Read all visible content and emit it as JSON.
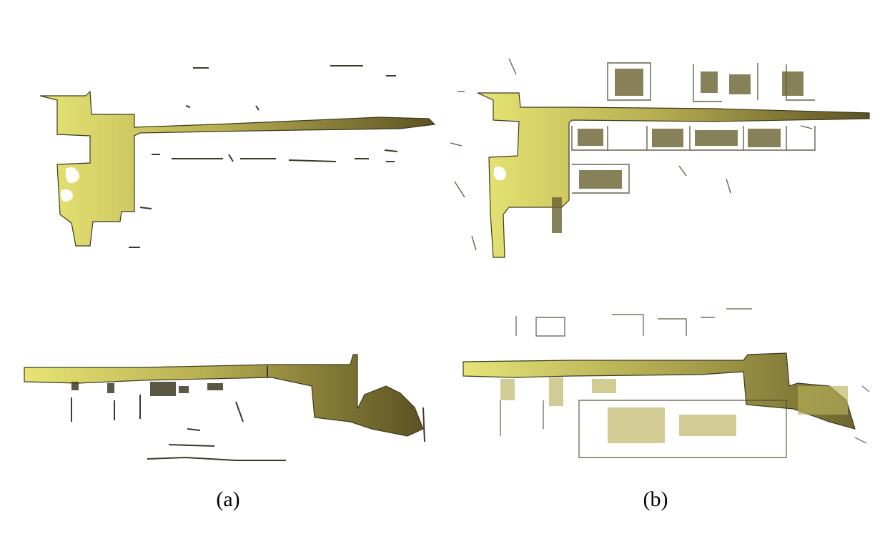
{
  "figure": {
    "panels": [
      {
        "label": "(a)"
      },
      {
        "label": "(b)"
      }
    ],
    "colors": {
      "map_fill_light": "#e6e474",
      "map_fill_dark": "#5e5424",
      "edge": "#3c3a1e",
      "noise": "#4a4628",
      "background": "#ffffff"
    }
  }
}
